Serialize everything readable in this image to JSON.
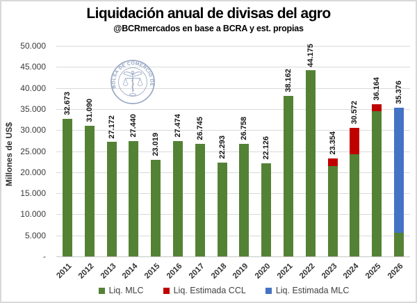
{
  "title": "Liquidación anual de divisas del agro",
  "subtitle": "@BCRmercados en base a BCRA y est. propias",
  "watermark_text": "BOLSA DE COMERCIO DE ROSARIO",
  "colors": {
    "mlc_green": "#548235",
    "ccl_red": "#c00000",
    "est_mlc_blue": "#4472c4",
    "gridline": "#d9d9d9",
    "axis_text": "#3a3a3a",
    "watermark": "#93a4c1"
  },
  "chart_data": {
    "type": "bar",
    "stacked": true,
    "title": "Liquidación anual de divisas del agro",
    "subtitle": "@BCRmercados en base a BCRA y est. propias",
    "xlabel": "",
    "ylabel": "Millones de US$",
    "ylim": [
      0,
      50000
    ],
    "y_tick_step": 5000,
    "y_tick_labels_bottom_up": [
      "-",
      "5.000",
      "10.000",
      "15.000",
      "20.000",
      "25.000",
      "30.000",
      "35.000",
      "40.000",
      "45.000",
      "50.000"
    ],
    "grid": true,
    "legend_position": "bottom",
    "categories": [
      "2011",
      "2012",
      "2013",
      "2014",
      "2015",
      "2016",
      "2017",
      "2018",
      "2019",
      "2020",
      "2021",
      "2022",
      "2023",
      "2024",
      "2025",
      "2026"
    ],
    "series": [
      {
        "name": "Liq. MLC",
        "color": "#548235",
        "values": [
          32673,
          31090,
          27172,
          27440,
          23019,
          27474,
          26745,
          22293,
          26758,
          22126,
          38162,
          44175,
          21400,
          24300,
          34500,
          5640
        ]
      },
      {
        "name": "Liq. Estimada CCL",
        "color": "#c00000",
        "values": [
          0,
          0,
          0,
          0,
          0,
          0,
          0,
          0,
          0,
          0,
          0,
          0,
          1954,
          6272,
          1664,
          0
        ]
      },
      {
        "name": "Liq. Estimada MLC",
        "color": "#4472c4",
        "values": [
          0,
          0,
          0,
          0,
          0,
          0,
          0,
          0,
          0,
          0,
          0,
          0,
          0,
          0,
          0,
          29736
        ]
      }
    ],
    "totals": [
      32673,
      31090,
      27172,
      27440,
      23019,
      27474,
      26745,
      22293,
      26758,
      22126,
      38162,
      44175,
      23354,
      30572,
      36164,
      35376
    ],
    "total_labels": [
      "32.673",
      "31.090",
      "27.172",
      "27.440",
      "23.019",
      "27.474",
      "26.745",
      "22.293",
      "26.758",
      "22.126",
      "38.162",
      "44.175",
      "23.354",
      "30.572",
      "36.164",
      "35.376"
    ]
  }
}
